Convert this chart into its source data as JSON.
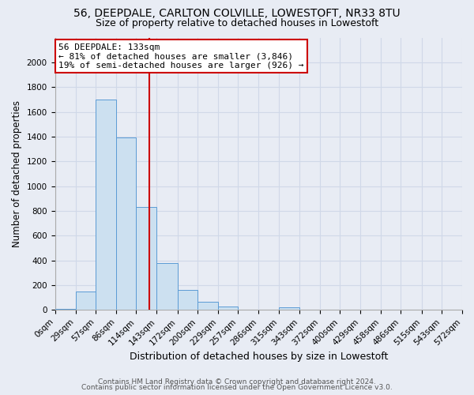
{
  "title1": "56, DEEPDALE, CARLTON COLVILLE, LOWESTOFT, NR33 8TU",
  "title2": "Size of property relative to detached houses in Lowestoft",
  "xlabel": "Distribution of detached houses by size in Lowestoft",
  "ylabel": "Number of detached properties",
  "bin_edges": [
    0,
    29,
    57,
    86,
    114,
    143,
    172,
    200,
    229,
    257,
    286,
    315,
    343,
    372,
    400,
    429,
    458,
    486,
    515,
    543,
    572
  ],
  "bin_labels": [
    "0sqm",
    "29sqm",
    "57sqm",
    "86sqm",
    "114sqm",
    "143sqm",
    "172sqm",
    "200sqm",
    "229sqm",
    "257sqm",
    "286sqm",
    "315sqm",
    "343sqm",
    "372sqm",
    "400sqm",
    "429sqm",
    "458sqm",
    "486sqm",
    "515sqm",
    "543sqm",
    "572sqm"
  ],
  "bar_heights": [
    10,
    150,
    1700,
    1390,
    830,
    380,
    160,
    65,
    30,
    0,
    0,
    20,
    0,
    0,
    0,
    0,
    0,
    0,
    0,
    0
  ],
  "bar_color": "#cce0f0",
  "bar_edge_color": "#5b9bd5",
  "property_size": 133,
  "vline_color": "#cc0000",
  "annotation_line1": "56 DEEPDALE: 133sqm",
  "annotation_line2": "← 81% of detached houses are smaller (3,846)",
  "annotation_line3": "19% of semi-detached houses are larger (926) →",
  "annotation_box_edge": "#cc0000",
  "annotation_box_face": "#ffffff",
  "ylim": [
    0,
    2200
  ],
  "yticks": [
    0,
    200,
    400,
    600,
    800,
    1000,
    1200,
    1400,
    1600,
    1800,
    2000
  ],
  "grid_color": "#d0d8e8",
  "bg_color": "#e8ecf4",
  "plot_bg_color": "#e8ecf4",
  "footer1": "Contains HM Land Registry data © Crown copyright and database right 2024.",
  "footer2": "Contains public sector information licensed under the Open Government Licence v3.0.",
  "title1_fontsize": 10,
  "title2_fontsize": 9,
  "xlabel_fontsize": 9,
  "ylabel_fontsize": 8.5,
  "tick_fontsize": 7.5,
  "annot_fontsize": 8,
  "footer_fontsize": 6.5
}
